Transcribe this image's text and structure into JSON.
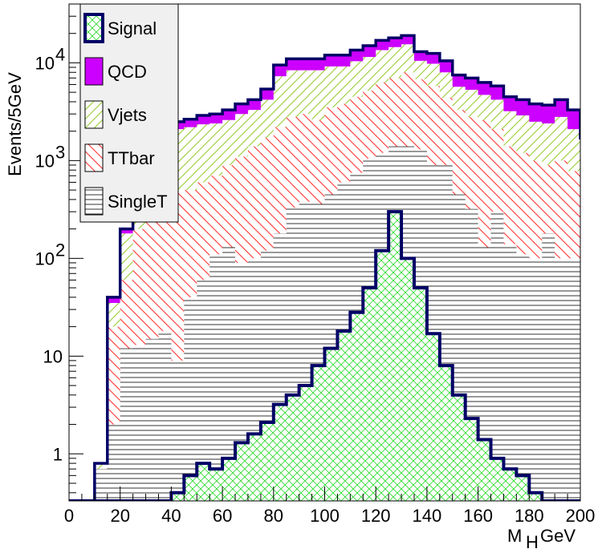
{
  "chart_data": {
    "type": "area",
    "title": "",
    "xlabel": "M",
    "xlabel_sub": "H",
    "xlabel_unit": "GeV",
    "ylabel": "Events/5GeV",
    "ylog": true,
    "xlim": [
      0,
      200
    ],
    "ylim": [
      0.33,
      40000
    ],
    "grid": false,
    "legend_position": "top-left",
    "bin_width": 5,
    "bin_edges_start": 0,
    "x_ticks": [
      {
        "value": 0,
        "label": "0"
      },
      {
        "value": 20,
        "label": "20"
      },
      {
        "value": 40,
        "label": "40"
      },
      {
        "value": 60,
        "label": "60"
      },
      {
        "value": 80,
        "label": "80"
      },
      {
        "value": 100,
        "label": "100"
      },
      {
        "value": 120,
        "label": "120"
      },
      {
        "value": 140,
        "label": "140"
      },
      {
        "value": 160,
        "label": "160"
      },
      {
        "value": 180,
        "label": "180"
      },
      {
        "value": 200,
        "label": "200"
      }
    ],
    "y_ticks": [
      {
        "value": 1,
        "label": "1",
        "sup": ""
      },
      {
        "value": 10,
        "label": "10",
        "sup": ""
      },
      {
        "value": 100,
        "label": "10",
        "sup": "2"
      },
      {
        "value": 1000,
        "label": "10",
        "sup": "3"
      },
      {
        "value": 10000,
        "label": "10",
        "sup": "4"
      }
    ],
    "series": [
      {
        "name": "QCD",
        "kind": "stack",
        "fill": "#cc00ff",
        "edge": "#000000",
        "values": [
          0,
          0,
          0.8,
          40,
          200,
          500,
          1200,
          2100,
          2500,
          2650,
          2900,
          3000,
          3300,
          3800,
          4200,
          5400,
          9500,
          11000,
          11000,
          11000,
          12000,
          12000,
          13500,
          15000,
          17000,
          18000,
          19000,
          13000,
          12500,
          10500,
          7500,
          7000,
          6300,
          5800,
          4500,
          4200,
          3800,
          3700,
          4200,
          3300,
          1700,
          2100,
          2100,
          1700,
          1000,
          550,
          520,
          440,
          330,
          300
        ]
      },
      {
        "name": "Vjets",
        "kind": "stack",
        "fill": "#99cc33",
        "edge": "#000000",
        "values": [
          0,
          0,
          0.8,
          35,
          180,
          440,
          1050,
          1800,
          2100,
          2200,
          2350,
          2400,
          2600,
          3000,
          3300,
          4200,
          7300,
          8400,
          8400,
          8400,
          9200,
          9200,
          10400,
          11500,
          13500,
          14500,
          15500,
          10500,
          9800,
          8000,
          5700,
          5300,
          4700,
          4200,
          3200,
          2900,
          2500,
          2400,
          2800,
          2100,
          1000,
          1200,
          1200,
          700,
          450,
          280,
          250,
          220,
          170,
          170
        ]
      },
      {
        "name": "TTbar",
        "kind": "stack",
        "fill": "#ff3333",
        "edge": "#000000",
        "values": [
          0,
          0,
          0.7,
          20,
          60,
          200,
          300,
          450,
          500,
          500,
          600,
          700,
          900,
          1100,
          1400,
          1700,
          2200,
          2800,
          3000,
          2600,
          3500,
          3800,
          4500,
          5200,
          6300,
          7000,
          8000,
          6800,
          5800,
          4400,
          3300,
          2800,
          2600,
          2100,
          1400,
          1200,
          1000,
          900,
          1000,
          780,
          450,
          430,
          280,
          70,
          40,
          28,
          22,
          12,
          12,
          10
        ]
      },
      {
        "name": "SingleT",
        "kind": "stack",
        "fill": "#000000",
        "edge": "#000000",
        "values": [
          0,
          0,
          0.7,
          2,
          12,
          13,
          15,
          18,
          9,
          40,
          60,
          110,
          130,
          90,
          100,
          120,
          180,
          330,
          380,
          360,
          450,
          600,
          750,
          1050,
          1200,
          1400,
          1400,
          1300,
          900,
          900,
          450,
          320,
          130,
          300,
          140,
          110,
          100,
          180,
          100,
          100,
          100,
          40,
          50,
          25,
          35,
          25,
          30,
          30,
          20,
          20
        ]
      },
      {
        "name": "Signal",
        "kind": "overlay",
        "fill": "#33dd33",
        "edge": "#000066",
        "values": [
          0,
          0,
          0,
          0,
          0,
          0,
          0,
          0,
          0.4,
          0.6,
          0.8,
          0.7,
          0.9,
          1.3,
          1.6,
          2.1,
          3.2,
          4,
          5,
          8,
          12,
          18,
          28,
          50,
          120,
          300,
          100,
          50,
          17,
          8,
          4,
          2.3,
          1.4,
          0.9,
          0.7,
          0.6,
          0.4,
          0,
          0,
          0,
          0,
          0,
          0,
          0,
          0,
          0,
          0,
          0,
          0,
          0
        ]
      }
    ],
    "legend_order": [
      "Signal",
      "QCD",
      "Vjets",
      "TTbar",
      "SingleT"
    ]
  }
}
